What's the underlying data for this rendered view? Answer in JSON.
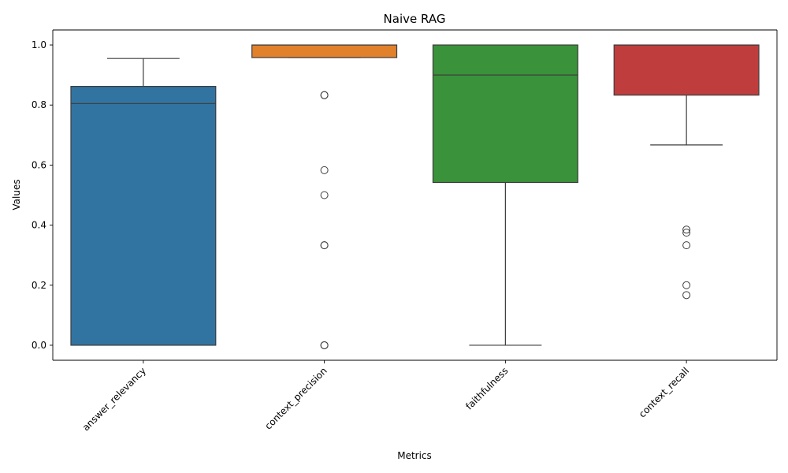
{
  "chart_data": {
    "type": "box",
    "title": "Naive RAG",
    "xlabel": "Metrics",
    "ylabel": "Values",
    "ylim": [
      -0.05,
      1.05
    ],
    "yticks": [
      0.0,
      0.2,
      0.4,
      0.6,
      0.8,
      1.0
    ],
    "ytick_labels": [
      "0.0",
      "0.2",
      "0.4",
      "0.6",
      "0.8",
      "1.0"
    ],
    "grid": false,
    "categories": [
      "answer_relevancy",
      "context_precision",
      "faithfulness",
      "context_recall"
    ],
    "boxes": [
      {
        "name": "answer_relevancy",
        "color": "#3274a1",
        "whisker_low": 0.0,
        "q1": 0.0,
        "median": 0.805,
        "q3": 0.862,
        "whisker_high": 0.955,
        "outliers": []
      },
      {
        "name": "context_precision",
        "color": "#e1812c",
        "whisker_low": 0.958,
        "q1": 0.958,
        "median": 1.0,
        "q3": 1.0,
        "whisker_high": 1.0,
        "outliers": [
          0.833,
          0.833,
          0.583,
          0.5,
          0.333,
          0.333,
          0.0,
          0.0
        ]
      },
      {
        "name": "faithfulness",
        "color": "#3a923a",
        "whisker_low": 0.0,
        "q1": 0.542,
        "median": 0.9,
        "q3": 1.0,
        "whisker_high": 1.0,
        "outliers": []
      },
      {
        "name": "context_recall",
        "color": "#c03d3e",
        "whisker_low": 0.667,
        "q1": 0.833,
        "median": 1.0,
        "q3": 1.0,
        "whisker_high": 1.0,
        "outliers": [
          0.385,
          0.375,
          0.333,
          0.2,
          0.167
        ]
      }
    ]
  }
}
